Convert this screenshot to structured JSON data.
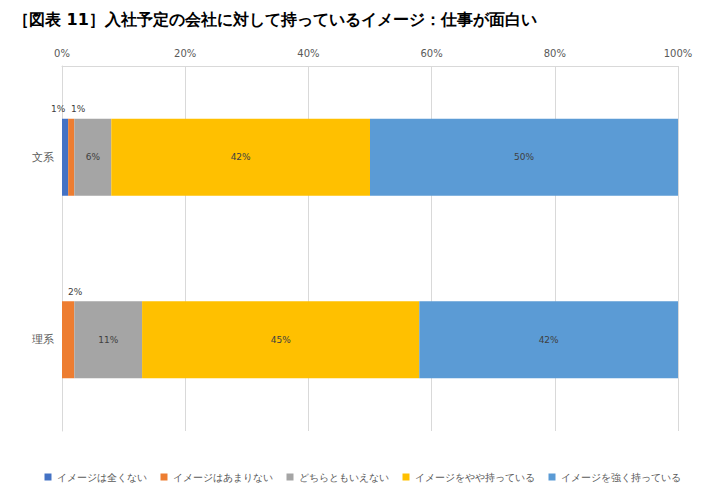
{
  "chart_data": {
    "type": "bar",
    "title": "［図表 11］入社予定の会社に対して持っているイメージ：仕事が面白い",
    "orientation": "horizontal",
    "stacked": true,
    "data_labels": true,
    "grid": true,
    "legend": "bottom",
    "categories": [
      "文系",
      "理系"
    ],
    "xlim": [
      0,
      100
    ],
    "xticks": [
      {
        "value": 0,
        "label": "0%"
      },
      {
        "value": 20,
        "label": "20%"
      },
      {
        "value": 40,
        "label": "40%"
      },
      {
        "value": 60,
        "label": "60%"
      },
      {
        "value": 80,
        "label": "80%"
      },
      {
        "value": 100,
        "label": "100%"
      }
    ],
    "series": [
      {
        "name": "イメージは全くない",
        "color": "#4472c4",
        "values": [
          1,
          null
        ],
        "value_labels": [
          "1%",
          null
        ]
      },
      {
        "name": "イメージはあまりない",
        "color": "#ed7d31",
        "values": [
          1,
          2
        ],
        "value_labels": [
          "1%",
          "2%"
        ]
      },
      {
        "name": "どちらともいえない",
        "color": "#a5a5a5",
        "values": [
          6,
          11
        ],
        "value_labels": [
          "6%",
          "11%"
        ]
      },
      {
        "name": "イメージをやや持っている",
        "color": "#ffc000",
        "values": [
          42,
          45
        ],
        "value_labels": [
          "42%",
          "45%"
        ]
      },
      {
        "name": "イメージを強く持っている",
        "color": "#5b9bd5",
        "values": [
          50,
          42
        ],
        "value_labels": [
          "50%",
          "42%"
        ]
      }
    ]
  }
}
